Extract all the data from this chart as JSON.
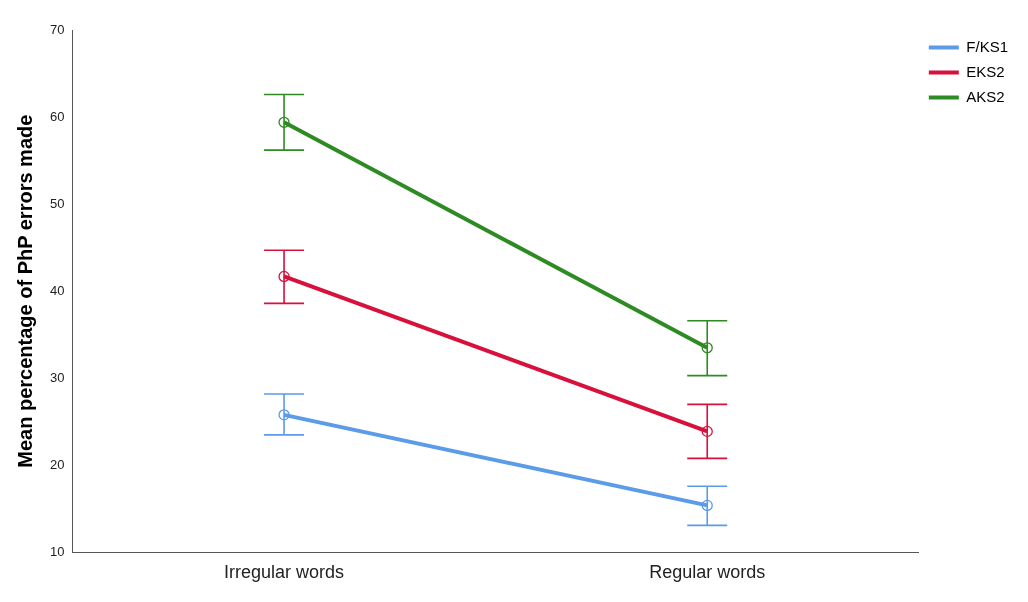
{
  "chart_data": {
    "type": "line",
    "ylabel": "Mean percentage of PhP errors made",
    "categories": [
      "Irregular words",
      "Regular words"
    ],
    "ylim": [
      10,
      70
    ],
    "yticks": [
      10,
      20,
      30,
      40,
      50,
      60,
      70
    ],
    "grid": false,
    "legend": "top right",
    "marker": "circle",
    "line_style": "solid",
    "series": [
      {
        "name": "F/KS1",
        "color": "#5b9be8",
        "values": [
          25.8,
          15.4
        ],
        "errors": [
          [
            23.5,
            28.2
          ],
          [
            13.1,
            17.6
          ]
        ]
      },
      {
        "name": "EKS2",
        "color": "#d8103c",
        "values": [
          41.7,
          23.9
        ],
        "errors": [
          [
            38.6,
            44.7
          ],
          [
            20.8,
            27.0
          ]
        ]
      },
      {
        "name": "AKS2",
        "color": "#2e8b24",
        "values": [
          59.4,
          33.5
        ],
        "errors": [
          [
            56.2,
            62.6
          ],
          [
            30.3,
            36.6
          ]
        ]
      }
    ]
  }
}
